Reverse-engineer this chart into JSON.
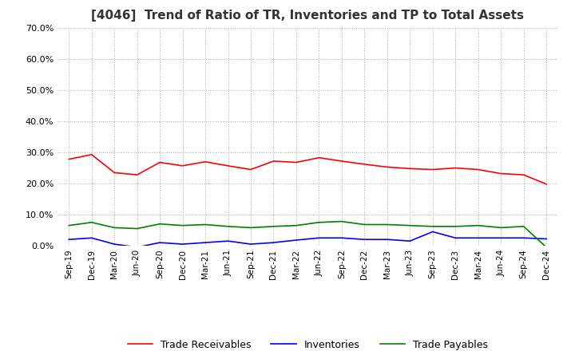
{
  "title": "[4046]  Trend of Ratio of TR, Inventories and TP to Total Assets",
  "title_fontsize": 11,
  "x_labels": [
    "Sep-19",
    "Dec-19",
    "Mar-20",
    "Jun-20",
    "Sep-20",
    "Dec-20",
    "Mar-21",
    "Jun-21",
    "Sep-21",
    "Dec-21",
    "Mar-22",
    "Jun-22",
    "Sep-22",
    "Dec-22",
    "Mar-23",
    "Jun-23",
    "Sep-23",
    "Dec-23",
    "Mar-24",
    "Jun-24",
    "Sep-24",
    "Dec-24"
  ],
  "trade_receivables": [
    0.278,
    0.293,
    0.235,
    0.228,
    0.268,
    0.257,
    0.27,
    0.257,
    0.245,
    0.272,
    0.268,
    0.283,
    0.272,
    0.262,
    0.253,
    0.248,
    0.245,
    0.25,
    0.245,
    0.232,
    0.228,
    0.198
  ],
  "inventories": [
    0.02,
    0.025,
    0.005,
    -0.005,
    0.01,
    0.005,
    0.01,
    0.015,
    0.005,
    0.01,
    0.018,
    0.025,
    0.025,
    0.02,
    0.02,
    0.015,
    0.045,
    0.025,
    0.025,
    0.025,
    0.025,
    0.022
  ],
  "trade_payables": [
    0.065,
    0.075,
    0.058,
    0.055,
    0.07,
    0.065,
    0.068,
    0.062,
    0.058,
    0.062,
    0.065,
    0.075,
    0.078,
    0.068,
    0.068,
    0.065,
    0.062,
    0.062,
    0.065,
    0.058,
    0.062,
    -0.005
  ],
  "tr_color": "#ff0000",
  "inv_color": "#0000ff",
  "tp_color": "#008000",
  "ylim": [
    0.0,
    0.7
  ],
  "yticks": [
    0.0,
    0.1,
    0.2,
    0.3,
    0.4,
    0.5,
    0.6,
    0.7
  ],
  "background_color": "#ffffff",
  "grid_color": "#aaaaaa",
  "legend_labels": [
    "Trade Receivables",
    "Inventories",
    "Trade Payables"
  ]
}
